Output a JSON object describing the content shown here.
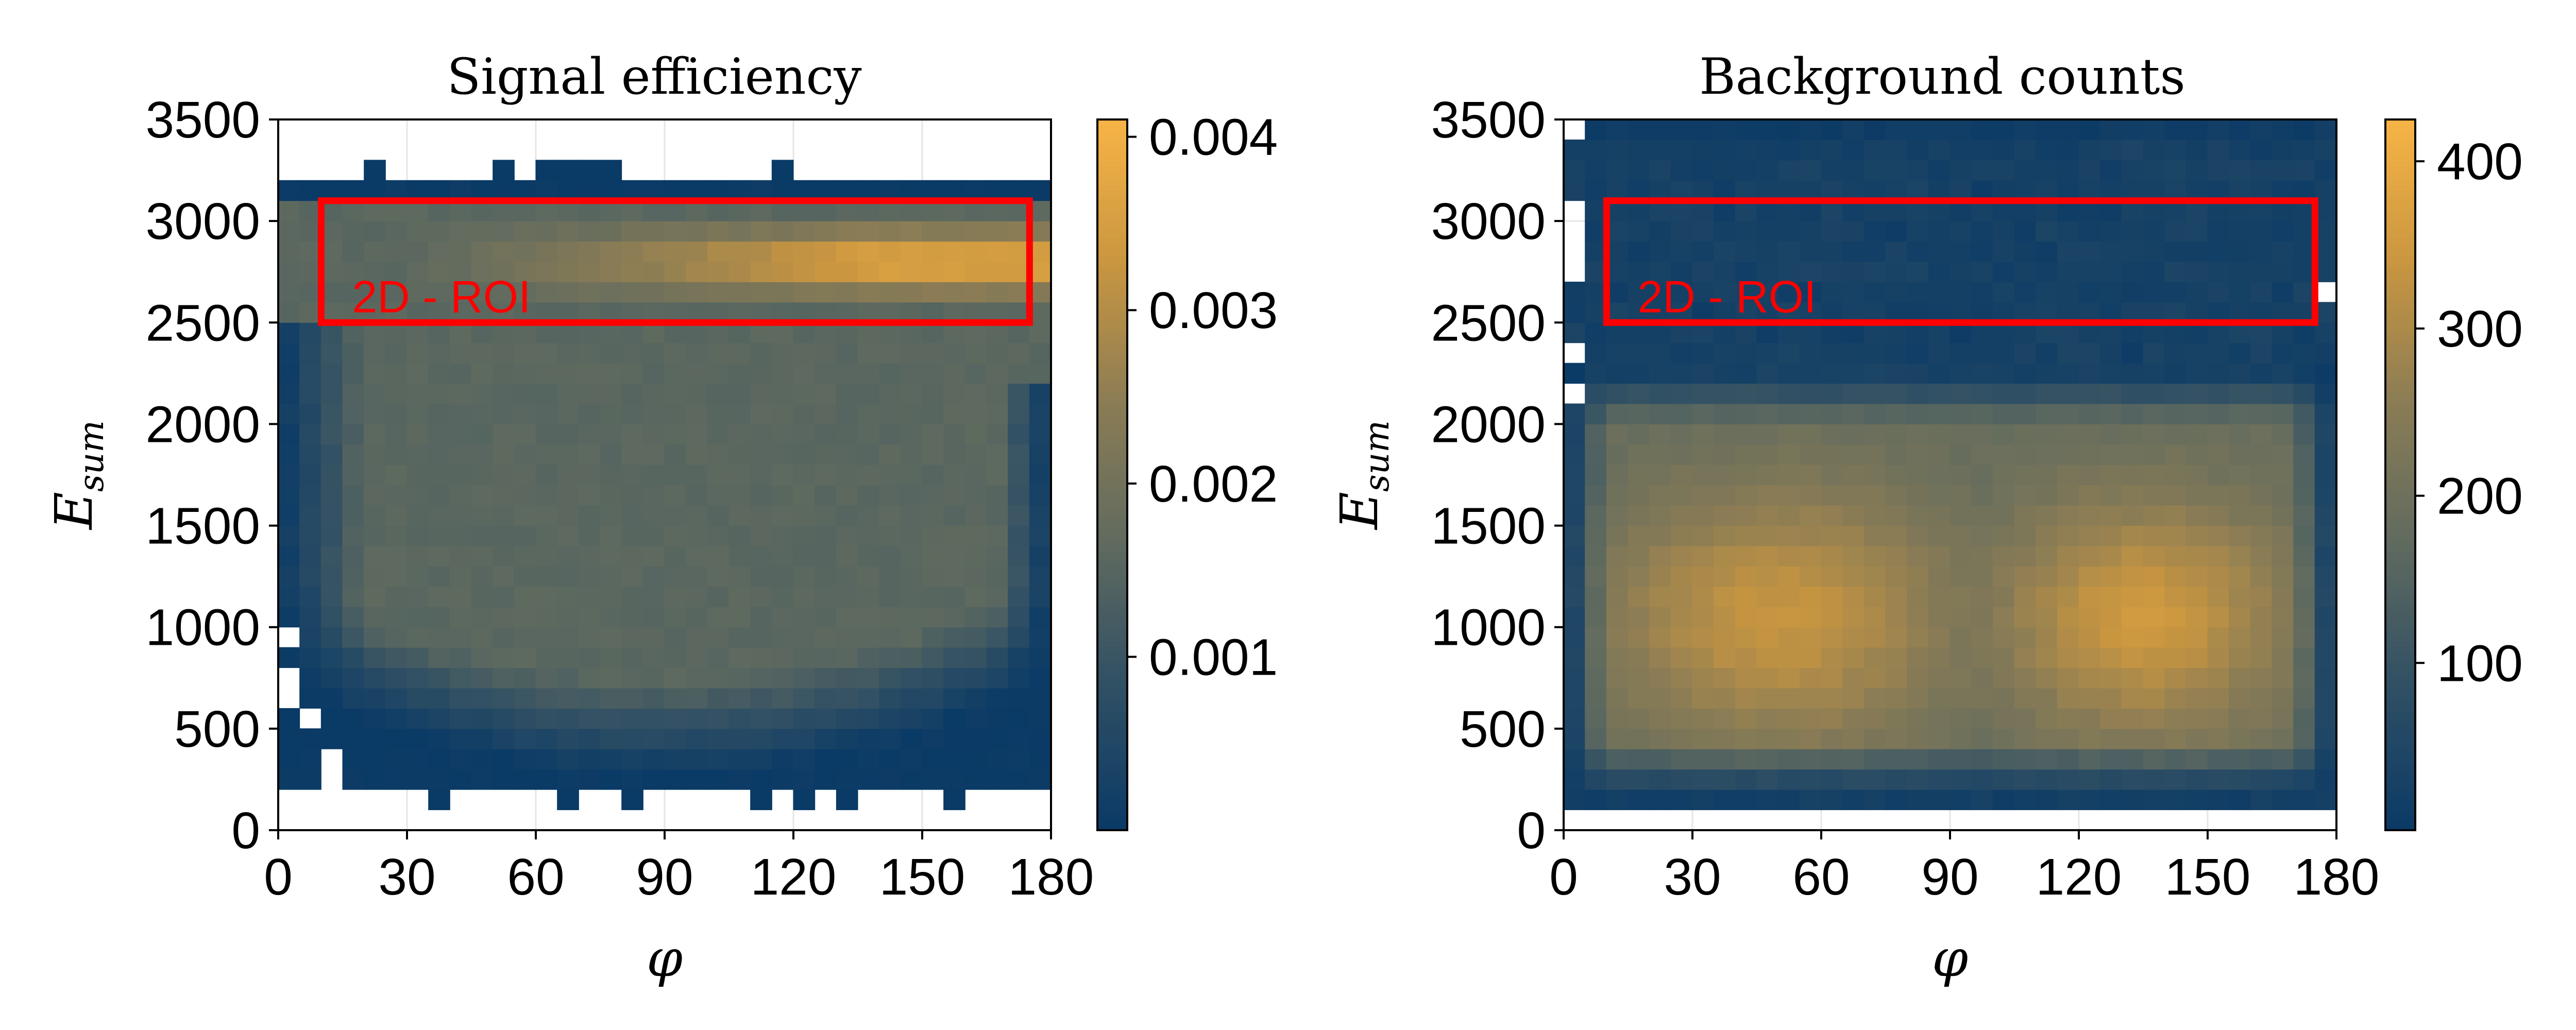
{
  "colors": {
    "colormap": [
      "#0a3a66",
      "#2f4f64",
      "#5f6a5f",
      "#8a7c55",
      "#c99640",
      "#f7b446"
    ],
    "roi_color": "#ff0000",
    "frame_color": "#000000",
    "grid_color": "#e6e6e6",
    "background": "#ffffff"
  },
  "chart_data": [
    {
      "type": "heatmap",
      "title": "Signal efficiency",
      "xlabel": "φ",
      "ylabel_main": "E",
      "ylabel_sub": "sum",
      "xlim": [
        0,
        180
      ],
      "ylim": [
        0,
        3500
      ],
      "xticks": [
        0,
        30,
        60,
        90,
        120,
        150,
        180
      ],
      "yticks": [
        0,
        500,
        1000,
        1500,
        2000,
        2500,
        3000,
        3500
      ],
      "bins": {
        "x_width": 5,
        "y_width": 100
      },
      "colorbar": {
        "min": 0,
        "max": 0.0041,
        "ticks": [
          0.001,
          0.002,
          0.003,
          0.004
        ],
        "tick_labels": [
          "0.001",
          "0.002",
          "0.003",
          "0.004"
        ]
      },
      "roi": {
        "x": [
          10,
          175
        ],
        "y": [
          2500,
          3100
        ],
        "label": "2D - ROI"
      },
      "grid": true
    },
    {
      "type": "heatmap",
      "title": "Background counts",
      "xlabel": "φ",
      "ylabel_main": "E",
      "ylabel_sub": "sum",
      "xlim": [
        0,
        180
      ],
      "ylim": [
        0,
        3500
      ],
      "xticks": [
        0,
        30,
        60,
        90,
        120,
        150,
        180
      ],
      "yticks": [
        0,
        500,
        1000,
        1500,
        2000,
        2500,
        3000,
        3500
      ],
      "bins": {
        "x_width": 5,
        "y_width": 100
      },
      "colorbar": {
        "min": 0,
        "max": 425,
        "ticks": [
          100,
          200,
          300,
          400
        ],
        "tick_labels": [
          "100",
          "200",
          "300",
          "400"
        ]
      },
      "roi": {
        "x": [
          10,
          175
        ],
        "y": [
          2500,
          3100
        ],
        "label": "2D - ROI"
      },
      "grid": true
    }
  ]
}
